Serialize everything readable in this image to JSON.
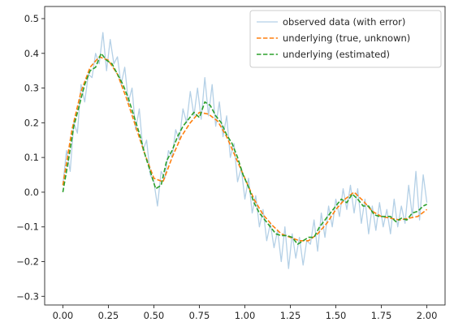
{
  "chart_data": {
    "type": "line",
    "title": "",
    "xlabel": "",
    "ylabel": "",
    "xlim": [
      -0.1,
      2.1
    ],
    "ylim": [
      -0.325,
      0.535
    ],
    "grid": false,
    "legend_position": "top-right",
    "x_ticks": [
      "0.00",
      "0.25",
      "0.50",
      "0.75",
      "1.00",
      "1.25",
      "1.50",
      "1.75",
      "2.00"
    ],
    "y_ticks": [
      "−0.3",
      "−0.2",
      "−0.1",
      "0.0",
      "0.1",
      "0.2",
      "0.3",
      "0.4",
      "0.5"
    ],
    "series": [
      {
        "name": "observed data (with error)",
        "color": "#b4d0e6",
        "style": "solid",
        "x": [
          0.0,
          0.02,
          0.04,
          0.06,
          0.08,
          0.1,
          0.12,
          0.14,
          0.16,
          0.18,
          0.2,
          0.22,
          0.24,
          0.26,
          0.28,
          0.3,
          0.32,
          0.34,
          0.36,
          0.38,
          0.4,
          0.42,
          0.44,
          0.46,
          0.48,
          0.5,
          0.52,
          0.54,
          0.56,
          0.58,
          0.6,
          0.62,
          0.64,
          0.66,
          0.68,
          0.7,
          0.72,
          0.74,
          0.76,
          0.78,
          0.8,
          0.82,
          0.84,
          0.86,
          0.88,
          0.9,
          0.92,
          0.94,
          0.96,
          0.98,
          1.0,
          1.02,
          1.04,
          1.06,
          1.08,
          1.1,
          1.12,
          1.14,
          1.16,
          1.18,
          1.2,
          1.22,
          1.24,
          1.26,
          1.28,
          1.3,
          1.32,
          1.34,
          1.36,
          1.38,
          1.4,
          1.42,
          1.44,
          1.46,
          1.48,
          1.5,
          1.52,
          1.54,
          1.56,
          1.58,
          1.6,
          1.62,
          1.64,
          1.66,
          1.68,
          1.7,
          1.72,
          1.74,
          1.76,
          1.78,
          1.8,
          1.82,
          1.84,
          1.86,
          1.88,
          1.9,
          1.92,
          1.94,
          1.96,
          1.98,
          2.0
        ],
        "y": [
          0.02,
          0.12,
          0.06,
          0.2,
          0.17,
          0.31,
          0.26,
          0.34,
          0.33,
          0.4,
          0.37,
          0.46,
          0.35,
          0.44,
          0.37,
          0.39,
          0.31,
          0.36,
          0.26,
          0.3,
          0.18,
          0.24,
          0.12,
          0.15,
          0.05,
          0.03,
          -0.04,
          0.06,
          0.04,
          0.12,
          0.1,
          0.18,
          0.15,
          0.24,
          0.2,
          0.29,
          0.22,
          0.3,
          0.21,
          0.33,
          0.22,
          0.31,
          0.19,
          0.26,
          0.16,
          0.22,
          0.1,
          0.14,
          0.03,
          0.07,
          -0.02,
          0.04,
          -0.06,
          -0.01,
          -0.1,
          -0.05,
          -0.14,
          -0.09,
          -0.16,
          -0.11,
          -0.2,
          -0.1,
          -0.22,
          -0.12,
          -0.19,
          -0.13,
          -0.21,
          -0.14,
          -0.15,
          -0.08,
          -0.17,
          -0.06,
          -0.13,
          -0.04,
          -0.1,
          -0.02,
          -0.07,
          0.01,
          -0.05,
          0.02,
          -0.06,
          0.01,
          -0.09,
          -0.02,
          -0.12,
          -0.04,
          -0.11,
          -0.03,
          -0.1,
          -0.05,
          -0.12,
          -0.02,
          -0.1,
          -0.04,
          -0.09,
          0.02,
          -0.07,
          0.06,
          -0.08,
          0.05,
          -0.03
        ]
      },
      {
        "name": "underlying (true, unknown)",
        "color": "#ff7f0e",
        "style": "dashed",
        "x": [
          0.0,
          0.05,
          0.1,
          0.15,
          0.2,
          0.25,
          0.3,
          0.35,
          0.4,
          0.45,
          0.5,
          0.55,
          0.6,
          0.65,
          0.7,
          0.75,
          0.8,
          0.85,
          0.9,
          0.95,
          1.0,
          1.05,
          1.1,
          1.15,
          1.2,
          1.25,
          1.3,
          1.35,
          1.4,
          1.45,
          1.5,
          1.55,
          1.6,
          1.65,
          1.7,
          1.75,
          1.8,
          1.85,
          1.9,
          1.95,
          2.0
        ],
        "y": [
          0.02,
          0.18,
          0.29,
          0.36,
          0.39,
          0.38,
          0.34,
          0.27,
          0.19,
          0.11,
          0.04,
          0.03,
          0.1,
          0.16,
          0.2,
          0.23,
          0.225,
          0.205,
          0.16,
          0.1,
          0.04,
          -0.02,
          -0.065,
          -0.095,
          -0.12,
          -0.13,
          -0.14,
          -0.14,
          -0.12,
          -0.09,
          -0.05,
          -0.02,
          0.0,
          -0.025,
          -0.055,
          -0.07,
          -0.075,
          -0.08,
          -0.075,
          -0.07,
          -0.05
        ]
      },
      {
        "name": "underlying (estimated)",
        "color": "#2ca02c",
        "style": "dashed",
        "x": [
          0.0,
          0.03,
          0.06,
          0.09,
          0.12,
          0.15,
          0.18,
          0.21,
          0.24,
          0.27,
          0.3,
          0.33,
          0.36,
          0.39,
          0.42,
          0.45,
          0.48,
          0.51,
          0.54,
          0.57,
          0.6,
          0.63,
          0.66,
          0.69,
          0.72,
          0.75,
          0.78,
          0.81,
          0.84,
          0.87,
          0.9,
          0.93,
          0.96,
          0.99,
          1.02,
          1.05,
          1.08,
          1.11,
          1.14,
          1.17,
          1.2,
          1.23,
          1.26,
          1.29,
          1.32,
          1.35,
          1.38,
          1.41,
          1.44,
          1.47,
          1.5,
          1.53,
          1.56,
          1.59,
          1.62,
          1.65,
          1.68,
          1.71,
          1.74,
          1.77,
          1.8,
          1.83,
          1.86,
          1.89,
          1.92,
          1.95,
          1.98,
          2.0
        ],
        "y": [
          0.0,
          0.09,
          0.19,
          0.25,
          0.31,
          0.35,
          0.36,
          0.4,
          0.38,
          0.37,
          0.34,
          0.31,
          0.27,
          0.22,
          0.17,
          0.11,
          0.06,
          0.01,
          0.02,
          0.09,
          0.12,
          0.16,
          0.19,
          0.21,
          0.23,
          0.215,
          0.26,
          0.25,
          0.22,
          0.2,
          0.165,
          0.14,
          0.1,
          0.05,
          0.015,
          -0.03,
          -0.06,
          -0.08,
          -0.1,
          -0.12,
          -0.125,
          -0.125,
          -0.13,
          -0.15,
          -0.14,
          -0.13,
          -0.13,
          -0.1,
          -0.08,
          -0.06,
          -0.04,
          -0.02,
          -0.03,
          -0.005,
          -0.02,
          -0.04,
          -0.04,
          -0.065,
          -0.07,
          -0.07,
          -0.07,
          -0.085,
          -0.075,
          -0.08,
          -0.06,
          -0.055,
          -0.04,
          -0.035
        ]
      }
    ]
  }
}
